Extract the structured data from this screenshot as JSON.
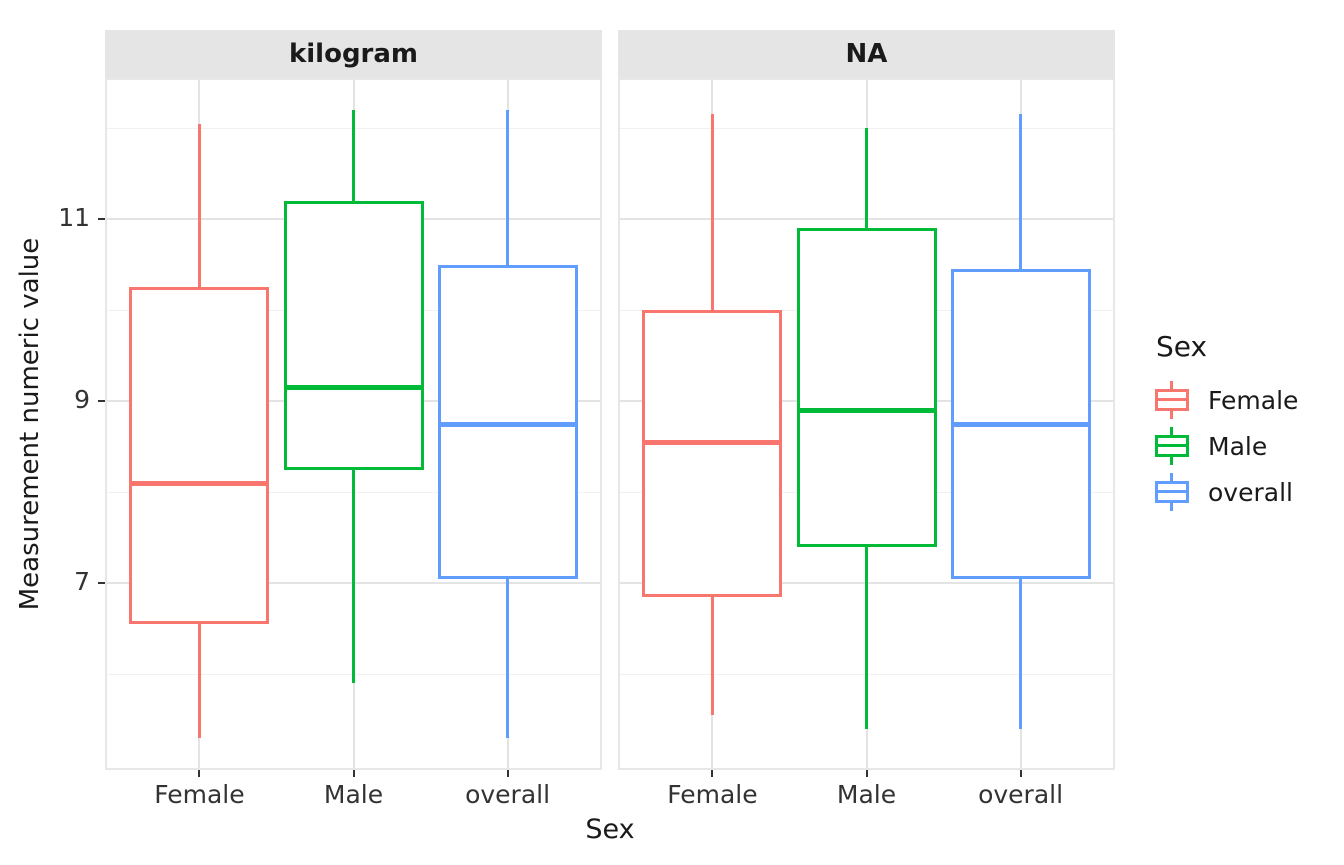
{
  "chart_data": {
    "type": "boxplot",
    "description": "Faceted box-and-whisker plot of measurement numeric value by sex, two facets",
    "xlabel": "Sex",
    "ylabel": "Measurement numeric value",
    "categories": [
      "Female",
      "Male",
      "overall"
    ],
    "y_ticks": [
      11,
      9,
      7
    ],
    "y_minor_gridlines": [
      6,
      8,
      10,
      12
    ],
    "ylim": [
      4.95,
      12.55
    ],
    "grid": true,
    "legend": {
      "title": "Sex",
      "position": "right",
      "entries": [
        {
          "label": "Female",
          "color": "#F8766D"
        },
        {
          "label": "Male",
          "color": "#00BA38"
        },
        {
          "label": "overall",
          "color": "#619CFF"
        }
      ]
    },
    "facets": [
      {
        "label": "kilogram",
        "boxes": [
          {
            "category": "Female",
            "color": "#F8766D",
            "whisker_low": 5.3,
            "q1": 6.55,
            "median": 8.1,
            "q3": 10.25,
            "whisker_high": 12.05
          },
          {
            "category": "Male",
            "color": "#00BA38",
            "whisker_low": 5.9,
            "q1": 8.25,
            "median": 9.15,
            "q3": 11.2,
            "whisker_high": 12.2
          },
          {
            "category": "overall",
            "color": "#619CFF",
            "whisker_low": 5.3,
            "q1": 7.05,
            "median": 8.75,
            "q3": 10.5,
            "whisker_high": 12.2
          }
        ]
      },
      {
        "label": "NA",
        "boxes": [
          {
            "category": "Female",
            "color": "#F8766D",
            "whisker_low": 5.55,
            "q1": 6.85,
            "median": 8.55,
            "q3": 10.0,
            "whisker_high": 12.15
          },
          {
            "category": "Male",
            "color": "#00BA38",
            "whisker_low": 5.4,
            "q1": 7.4,
            "median": 8.9,
            "q3": 10.9,
            "whisker_high": 12.0
          },
          {
            "category": "overall",
            "color": "#619CFF",
            "whisker_low": 5.4,
            "q1": 7.05,
            "median": 8.75,
            "q3": 10.45,
            "whisker_high": 12.15
          }
        ]
      }
    ],
    "colors": {
      "strip_background": "#E5E5E5",
      "panel_background": "#FFFFFF",
      "grid_major": "#E3E3E3",
      "grid_minor": "#F1F1F1",
      "tick_mark": "#333333",
      "text": "#1A1A1A"
    }
  }
}
